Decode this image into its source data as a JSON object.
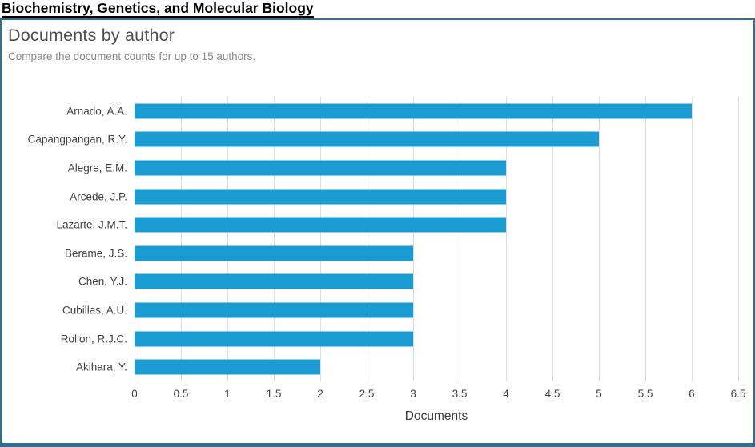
{
  "page": {
    "title": "Biochemistry, Genetics, and Molecular Biology"
  },
  "panel": {
    "heading": "Documents by author",
    "subtitle": "Compare the document counts for up to 15 authors."
  },
  "chart_data": {
    "type": "bar",
    "orientation": "horizontal",
    "title": "Documents by author",
    "categories": [
      "Arnado, A.A.",
      "Capangpangan, R.Y.",
      "Alegre, E.M.",
      "Arcede, J.P.",
      "Lazarte, J.M.T.",
      "Berame, J.S.",
      "Chen, Y.J.",
      "Cubillas, A.U.",
      "Rollon, R.J.C.",
      "Akihara, Y."
    ],
    "values": [
      6,
      5,
      4,
      4,
      4,
      3,
      3,
      3,
      3,
      2
    ],
    "xlabel": "Documents",
    "ylabel": "",
    "xlim": [
      0,
      6.5
    ],
    "xticks": [
      0,
      0.5,
      1,
      1.5,
      2,
      2.5,
      3,
      3.5,
      4,
      4.5,
      5,
      5.5,
      6,
      6.5
    ],
    "grid": true,
    "legend": false,
    "bar_color": "#1a9cd2",
    "gridline_color": "#dcdee2"
  },
  "colors": {
    "panel_border": "#2f7092",
    "title_underline": "#000000",
    "heading_text": "#4e4e4e",
    "subtitle_text": "#898989",
    "axis_text": "#404040"
  }
}
